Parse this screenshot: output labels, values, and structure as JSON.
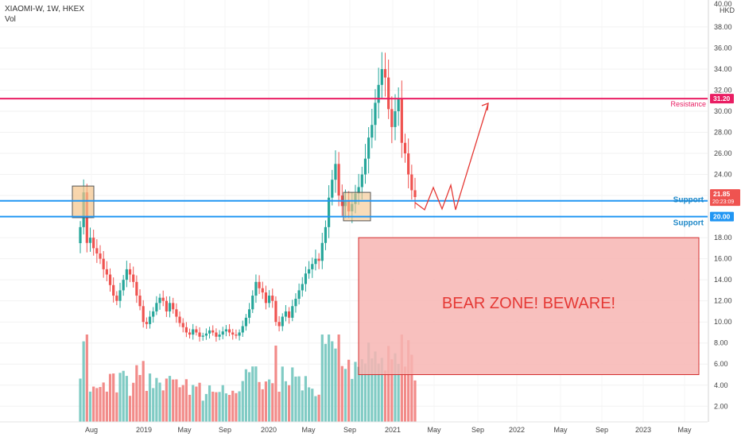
{
  "legend": {
    "symbol": "XIAOMI-W, 1W, HKEX",
    "indicator": "Vol"
  },
  "price_axis": {
    "currency": "HKD",
    "top_label": "40.00"
  },
  "colors": {
    "up": "#26a69a",
    "down": "#ef5350",
    "vol_up": "#80cbc4",
    "vol_down": "#f28b89",
    "resistance": "#e91e63",
    "support": "#2196f3",
    "last_price": "#ef5350",
    "bear_zone_fill": "#f7b5b3",
    "bear_zone_text": "#e53935"
  },
  "chart_data": {
    "type": "candlestick",
    "ylim": [
      0,
      40
    ],
    "yticks": [
      2,
      4,
      6,
      8,
      10,
      12,
      14,
      16,
      18,
      20,
      22,
      24,
      26,
      28,
      30,
      32,
      34,
      36,
      38
    ],
    "xticks": [
      "Aug",
      "2019",
      "May",
      "Sep",
      "2020",
      "May",
      "Sep",
      "2021",
      "May",
      "Sep",
      "2022",
      "May",
      "Sep",
      "2023",
      "May"
    ],
    "candles_close_approx": [
      19.0,
      22.3,
      17.5,
      18.0,
      17.0,
      16.5,
      16.0,
      15.0,
      14.5,
      13.5,
      12.5,
      12.0,
      13.0,
      14.0,
      15.0,
      14.5,
      13.8,
      12.5,
      11.5,
      10.0,
      9.8,
      10.5,
      11.0,
      11.8,
      12.3,
      12.0,
      11.0,
      11.8,
      11.2,
      10.5,
      9.9,
      9.5,
      9.0,
      8.8,
      9.3,
      9.0,
      8.6,
      8.7,
      8.9,
      9.2,
      9.0,
      8.6,
      8.8,
      9.1,
      9.3,
      9.0,
      8.8,
      8.7,
      9.0,
      9.6,
      10.4,
      11.2,
      12.5,
      13.8,
      13.2,
      12.8,
      11.8,
      12.5,
      12.0,
      10.0,
      9.6,
      10.5,
      11.0,
      10.4,
      11.5,
      12.2,
      13.0,
      13.6,
      14.6,
      15.0,
      15.5,
      16.0,
      15.8,
      17.5,
      19.0,
      21.8,
      23.5,
      25.0,
      22.0,
      21.0,
      21.5,
      20.5,
      21.2,
      22.2,
      22.8,
      24.0,
      25.5,
      27.5,
      28.7,
      30.8,
      32.5,
      34.0,
      33.2,
      30.2,
      28.5,
      30.0,
      31.2,
      27.0,
      26.0,
      24.0,
      22.5,
      21.85
    ],
    "annotations": {
      "resistance": {
        "price": 31.2,
        "label": "Resistance",
        "axis_label": "31.20"
      },
      "support_upper": {
        "price": 21.5,
        "label": "Support",
        "axis_label": "21.50"
      },
      "support_lower": {
        "price": 20.0,
        "label": "Support",
        "axis_label": "20.00"
      },
      "last_price": {
        "price": 21.85,
        "label": "21.85",
        "countdown": "20:23:09"
      },
      "bear_zone": {
        "label": "BEAR ZONE! BEWARE!",
        "price_top": 18.0,
        "price_bottom": 5.0
      }
    }
  }
}
